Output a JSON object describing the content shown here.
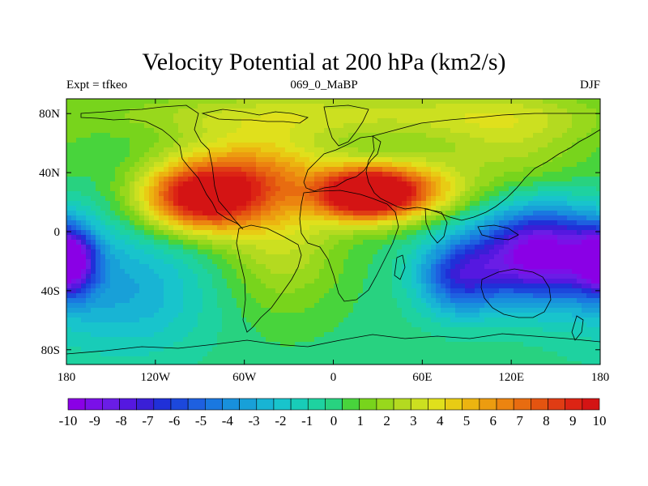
{
  "title": "Velocity Potential at 200 hPa (km2/s)",
  "subtitle_left": "Expt = tfkeo",
  "subtitle_center": "069_0_MaBP",
  "subtitle_right": "DJF",
  "map": {
    "lon_range": [
      -180,
      180
    ],
    "lat_range": [
      -90,
      90
    ],
    "x_ticks": [
      {
        "value": -180,
        "label": "180"
      },
      {
        "value": -120,
        "label": "120W"
      },
      {
        "value": -60,
        "label": "60W"
      },
      {
        "value": 0,
        "label": "0"
      },
      {
        "value": 60,
        "label": "60E"
      },
      {
        "value": 120,
        "label": "120E"
      },
      {
        "value": 180,
        "label": "180"
      }
    ],
    "y_ticks": [
      {
        "value": 80,
        "label": "80N"
      },
      {
        "value": 40,
        "label": "40N"
      },
      {
        "value": 0,
        "label": "0"
      },
      {
        "value": -40,
        "label": "40S"
      },
      {
        "value": -80,
        "label": "80S"
      }
    ],
    "field_centers": [
      {
        "lon": -90,
        "lat": 22,
        "value": 9.5,
        "spread_lon": 28,
        "spread_lat": 16
      },
      {
        "lon": 20,
        "lat": 25,
        "value": 9.0,
        "spread_lon": 22,
        "spread_lat": 12
      },
      {
        "lon": 45,
        "lat": 28,
        "value": 6.5,
        "spread_lon": 30,
        "spread_lat": 14
      },
      {
        "lon": -55,
        "lat": 40,
        "value": 5.0,
        "spread_lon": 40,
        "spread_lat": 20
      },
      {
        "lon": -35,
        "lat": -5,
        "value": 3.0,
        "spread_lon": 30,
        "spread_lat": 35
      },
      {
        "lon": 140,
        "lat": -15,
        "value": -10.5,
        "spread_lon": 30,
        "spread_lat": 22
      },
      {
        "lon": 85,
        "lat": -30,
        "value": -6.0,
        "spread_lon": 20,
        "spread_lat": 18
      },
      {
        "lon": -178,
        "lat": -20,
        "value": -8.0,
        "spread_lon": 12,
        "spread_lat": 15
      },
      {
        "lon": -140,
        "lat": -40,
        "value": -3.0,
        "spread_lon": 40,
        "spread_lat": 30
      },
      {
        "lon": 0,
        "lat": 80,
        "value": 3.0,
        "spread_lon": 120,
        "spread_lat": 12
      },
      {
        "lon": 120,
        "lat": 60,
        "value": 2.5,
        "spread_lon": 40,
        "spread_lat": 25
      }
    ]
  },
  "colorbar": {
    "levels": [
      -10,
      -9,
      -8,
      -7,
      -6,
      -5,
      -4,
      -3,
      -2,
      -1,
      0,
      1,
      2,
      3,
      4,
      5,
      6,
      7,
      8,
      9,
      10
    ],
    "labels": [
      "-10",
      "-9",
      "-8",
      "-7",
      "-6",
      "-5",
      "-4",
      "-3",
      "-2",
      "-1",
      "0",
      "1",
      "2",
      "3",
      "4",
      "5",
      "6",
      "7",
      "8",
      "9",
      "10"
    ],
    "colors": [
      "#8a00e6",
      "#7a10e8",
      "#6a1de6",
      "#5518e0",
      "#3a1fd6",
      "#2030d8",
      "#1c48dc",
      "#1e60e0",
      "#1a78e0",
      "#1890dc",
      "#18a0d8",
      "#18b4d4",
      "#18c4cc",
      "#18ccb8",
      "#1ed2a0",
      "#28d280",
      "#48d43c",
      "#78d41c",
      "#98d81c",
      "#b4da20",
      "#cce020",
      "#e0e01c",
      "#e8cc14",
      "#ecb410",
      "#ec9c10",
      "#ec8410",
      "#e86c10",
      "#e45410",
      "#e03c14",
      "#dc2414",
      "#d41414"
    ]
  }
}
